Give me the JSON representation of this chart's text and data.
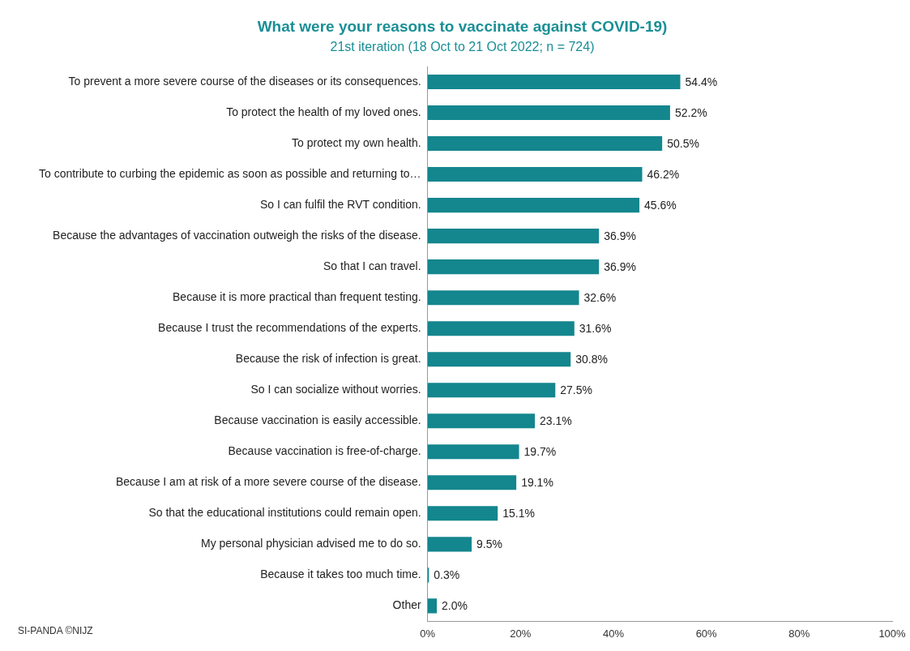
{
  "chart_data": {
    "type": "bar",
    "orientation": "horizontal",
    "title": "What were your reasons to vaccinate against COVID-19)",
    "subtitle": "21st iteration (18 Oct to 21 Oct 2022; n = 724)",
    "categories": [
      "To prevent a more severe course of the diseases or its consequences.",
      "To protect the health of my loved ones.",
      "To protect my own health.",
      "To contribute to curbing the epidemic as soon as possible and returning to…",
      "So I can fulfil the RVT condition.",
      "Because the advantages of vaccination outweigh the risks of the disease.",
      "So that I can travel.",
      "Because it is more practical than frequent testing.",
      "Because I trust the recommendations of the experts.",
      "Because the risk of infection is great.",
      "So I can socialize without worries.",
      "Because vaccination is easily accessible.",
      "Because vaccination is free-of-charge.",
      "Because I am at risk of a more severe course of the disease.",
      "So that the educational institutions could remain open.",
      "My personal physician advised me to do so.",
      "Because it takes too much time.",
      "Other"
    ],
    "values": [
      54.4,
      52.2,
      50.5,
      46.2,
      45.6,
      36.9,
      36.9,
      32.6,
      31.6,
      30.8,
      27.5,
      23.1,
      19.7,
      19.1,
      15.1,
      9.5,
      0.3,
      2.0
    ],
    "value_labels": [
      "54.4%",
      "52.2%",
      "50.5%",
      "46.2%",
      "45.6%",
      "36.9%",
      "36.9%",
      "32.6%",
      "31.6%",
      "30.8%",
      "27.5%",
      "23.1%",
      "19.7%",
      "19.1%",
      "15.1%",
      "9.5%",
      "0.3%",
      "2.0%"
    ],
    "color": "#14868e",
    "xlim": [
      0,
      100
    ],
    "xticks": [
      {
        "value": 0,
        "label": "0%"
      },
      {
        "value": 20,
        "label": "20%"
      },
      {
        "value": 40,
        "label": "40%"
      },
      {
        "value": 60,
        "label": "60%"
      },
      {
        "value": 80,
        "label": "80%"
      },
      {
        "value": 100,
        "label": "100%"
      }
    ],
    "grid": false,
    "legend": false,
    "annotations": [
      "SI-PANDA ©NIJZ"
    ]
  }
}
